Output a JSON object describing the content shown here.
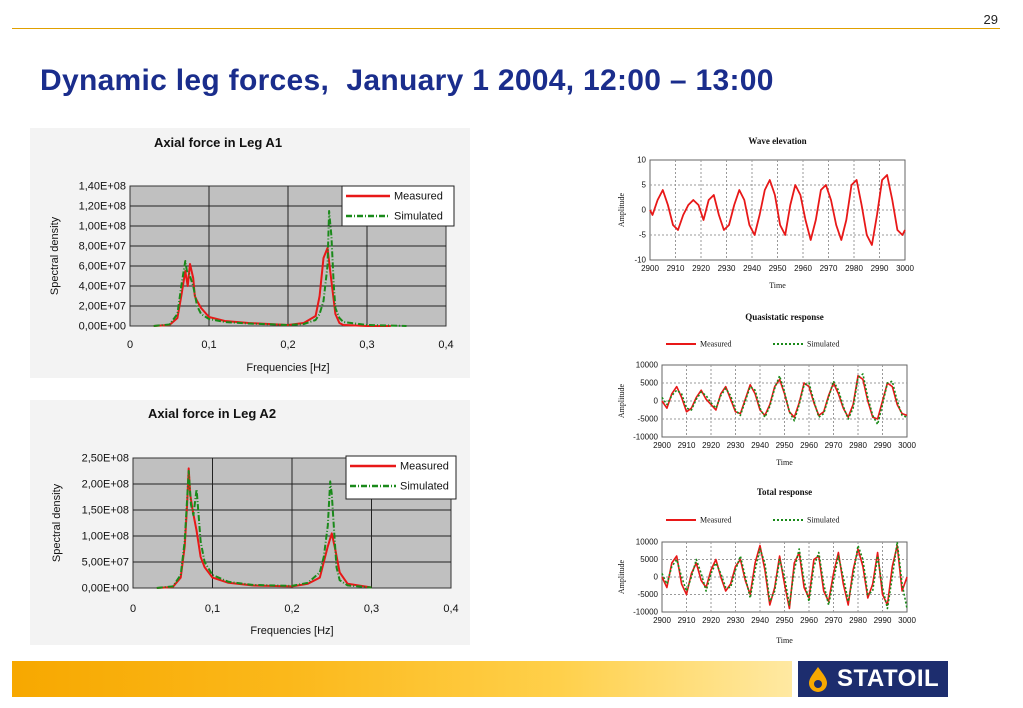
{
  "page": {
    "number": "29",
    "title": "Dynamic leg forces,  January 1 2004, 12:00 – 13:00",
    "logo": "STATOIL"
  },
  "colors": {
    "title": "#1a2d8c",
    "measured": "#e81818",
    "simulated": "#1a8a1a",
    "plot_bg": "#c0c0c0",
    "brand_orange": "#f7a800",
    "brand_navy": "#1d2d6e"
  },
  "chart_data": [
    {
      "id": "axial-a1",
      "type": "line",
      "title": "Axial force in Leg A1",
      "xlabel": "Frequencies [Hz]",
      "ylabel": "Spectral density",
      "xlim": [
        0,
        0.4
      ],
      "ylim": [
        0,
        140000000
      ],
      "xticks": [
        "0",
        "0,1",
        "0,2",
        "0,3",
        "0,4"
      ],
      "yticks": [
        "0,00E+00",
        "2,00E+07",
        "4,00E+07",
        "6,00E+07",
        "8,00E+07",
        "1,00E+08",
        "1,20E+08",
        "1,40E+08"
      ],
      "grid": true,
      "legend_position": "top-right",
      "series": [
        {
          "name": "Measured",
          "style": "solid",
          "x": [
            0.03,
            0.05,
            0.06,
            0.065,
            0.07,
            0.073,
            0.076,
            0.08,
            0.082,
            0.085,
            0.09,
            0.1,
            0.12,
            0.15,
            0.2,
            0.22,
            0.235,
            0.24,
            0.245,
            0.25,
            0.255,
            0.26,
            0.265,
            0.27,
            0.3,
            0.33
          ],
          "values": [
            0,
            1000000,
            8000000,
            30000000,
            55000000,
            40000000,
            62000000,
            48000000,
            30000000,
            25000000,
            18000000,
            9000000,
            5000000,
            3000000,
            1000000,
            3000000,
            10000000,
            30000000,
            68000000,
            78000000,
            45000000,
            12000000,
            3000000,
            1000000,
            0,
            0
          ]
        },
        {
          "name": "Simulated",
          "style": "dash-dot",
          "x": [
            0.03,
            0.05,
            0.06,
            0.065,
            0.07,
            0.072,
            0.075,
            0.08,
            0.085,
            0.09,
            0.1,
            0.12,
            0.15,
            0.2,
            0.22,
            0.235,
            0.24,
            0.245,
            0.25,
            0.252,
            0.255,
            0.258,
            0.26,
            0.265,
            0.27,
            0.3,
            0.35
          ],
          "values": [
            0,
            1500000,
            12000000,
            40000000,
            65000000,
            55000000,
            52000000,
            40000000,
            20000000,
            12000000,
            7000000,
            4000000,
            2500000,
            1000000,
            2000000,
            6000000,
            12000000,
            25000000,
            60000000,
            115000000,
            90000000,
            40000000,
            18000000,
            8000000,
            4000000,
            1000000,
            0
          ]
        }
      ]
    },
    {
      "id": "axial-a2",
      "type": "line",
      "title": "Axial force in Leg A2",
      "xlabel": "Frequencies [Hz]",
      "ylabel": "Spectral density",
      "xlim": [
        0,
        0.4
      ],
      "ylim": [
        0,
        250000000
      ],
      "xticks": [
        "0",
        "0,1",
        "0,2",
        "0,3",
        "0,4"
      ],
      "yticks": [
        "0,00E+00",
        "5,00E+07",
        "1,00E+08",
        "1,50E+08",
        "2,00E+08",
        "2,50E+08"
      ],
      "grid": true,
      "legend_position": "top-right",
      "series": [
        {
          "name": "Measured",
          "style": "solid",
          "x": [
            0.03,
            0.05,
            0.06,
            0.065,
            0.068,
            0.07,
            0.072,
            0.075,
            0.08,
            0.085,
            0.09,
            0.1,
            0.12,
            0.15,
            0.2,
            0.22,
            0.235,
            0.24,
            0.245,
            0.25,
            0.255,
            0.26,
            0.27,
            0.3
          ],
          "values": [
            0,
            2000000,
            20000000,
            80000000,
            160000000,
            230000000,
            180000000,
            150000000,
            110000000,
            60000000,
            40000000,
            20000000,
            10000000,
            5000000,
            3000000,
            8000000,
            20000000,
            50000000,
            80000000,
            105000000,
            70000000,
            30000000,
            8000000,
            1000000
          ]
        },
        {
          "name": "Simulated",
          "style": "dash-dot",
          "x": [
            0.03,
            0.05,
            0.06,
            0.065,
            0.068,
            0.07,
            0.073,
            0.076,
            0.08,
            0.085,
            0.09,
            0.1,
            0.12,
            0.15,
            0.2,
            0.22,
            0.235,
            0.24,
            0.245,
            0.248,
            0.25,
            0.253,
            0.256,
            0.26,
            0.27,
            0.3
          ],
          "values": [
            0,
            3000000,
            25000000,
            90000000,
            170000000,
            225000000,
            160000000,
            140000000,
            190000000,
            90000000,
            50000000,
            25000000,
            12000000,
            6000000,
            4000000,
            10000000,
            30000000,
            60000000,
            120000000,
            205000000,
            180000000,
            110000000,
            40000000,
            15000000,
            5000000,
            1000000
          ]
        }
      ]
    },
    {
      "id": "wave-elevation",
      "type": "line",
      "title": "Wave elevation",
      "xlabel": "Time",
      "ylabel": "Amplitude",
      "xlim": [
        2900,
        3000
      ],
      "ylim": [
        -10,
        10
      ],
      "xticks": [
        "2900",
        "2910",
        "2920",
        "2930",
        "2940",
        "2950",
        "2960",
        "2970",
        "2980",
        "2990",
        "3000"
      ],
      "yticks": [
        "-10",
        "-5",
        "0",
        "5",
        "10"
      ],
      "grid": true,
      "legend_position": "none",
      "series": [
        {
          "name": "",
          "style": "solid",
          "x": [
            2900,
            2901,
            2903,
            2905,
            2907,
            2909,
            2911,
            2913,
            2915,
            2917,
            2919,
            2921,
            2923,
            2925,
            2927,
            2929,
            2931,
            2933,
            2935,
            2937,
            2939,
            2941,
            2943,
            2945,
            2947,
            2949,
            2951,
            2953,
            2955,
            2957,
            2959,
            2961,
            2963,
            2965,
            2967,
            2969,
            2971,
            2973,
            2975,
            2977,
            2979,
            2981,
            2983,
            2985,
            2987,
            2989,
            2991,
            2993,
            2995,
            2997,
            2999,
            3000
          ],
          "values": [
            0,
            -1,
            2,
            4,
            1,
            -3,
            -4,
            -1,
            1,
            2,
            1,
            -2,
            2,
            3,
            -1,
            -4,
            -3,
            1,
            4,
            2,
            -3,
            -5,
            -1,
            4,
            6,
            3,
            -3,
            -5,
            1,
            5,
            3,
            -2,
            -6,
            -2,
            4,
            5,
            2,
            -3,
            -6,
            -2,
            5,
            6,
            1,
            -5,
            -7,
            -1,
            6,
            7,
            2,
            -4,
            -5,
            -4
          ]
        }
      ]
    },
    {
      "id": "quasistatic-response",
      "type": "line",
      "title": "Quasistatic response",
      "xlabel": "Time",
      "ylabel": "Amplitude",
      "xlim": [
        2900,
        3000
      ],
      "ylim": [
        -10000,
        10000
      ],
      "xticks": [
        "2900",
        "2910",
        "2920",
        "2930",
        "2940",
        "2950",
        "2960",
        "2970",
        "2980",
        "2990",
        "3000"
      ],
      "yticks": [
        "-10000",
        "-5000",
        "0",
        "5000",
        "10000"
      ],
      "grid": true,
      "legend_position": "top",
      "series": [
        {
          "name": "Measured",
          "style": "solid",
          "x": [
            2900,
            2902,
            2904,
            2906,
            2908,
            2910,
            2912,
            2914,
            2916,
            2918,
            2920,
            2922,
            2924,
            2926,
            2928,
            2930,
            2932,
            2934,
            2936,
            2938,
            2940,
            2942,
            2944,
            2946,
            2948,
            2950,
            2952,
            2954,
            2956,
            2958,
            2960,
            2962,
            2964,
            2966,
            2968,
            2970,
            2972,
            2974,
            2976,
            2978,
            2980,
            2982,
            2984,
            2986,
            2988,
            2990,
            2992,
            2994,
            2996,
            2998,
            3000
          ],
          "values": [
            0,
            -2000,
            2000,
            4000,
            1000,
            -3000,
            -2000,
            1000,
            3000,
            500,
            -1000,
            -2500,
            2000,
            4000,
            500,
            -3000,
            -3500,
            500,
            4500,
            2000,
            -2500,
            -4000,
            -1000,
            4000,
            6000,
            2000,
            -3000,
            -4500,
            -500,
            5000,
            4000,
            -500,
            -4000,
            -3000,
            1500,
            5000,
            2000,
            -2000,
            -4500,
            -1000,
            7000,
            6000,
            0,
            -4500,
            -5000,
            0,
            5000,
            4000,
            -1000,
            -3500,
            -4000
          ]
        },
        {
          "name": "Simulated",
          "style": "dotted",
          "x": [
            2900,
            2902,
            2904,
            2906,
            2908,
            2910,
            2912,
            2914,
            2916,
            2918,
            2920,
            2922,
            2924,
            2926,
            2928,
            2930,
            2932,
            2934,
            2936,
            2938,
            2940,
            2942,
            2944,
            2946,
            2948,
            2950,
            2952,
            2954,
            2956,
            2958,
            2960,
            2962,
            2964,
            2966,
            2968,
            2970,
            2972,
            2974,
            2976,
            2978,
            2980,
            2982,
            2984,
            2986,
            2988,
            2990,
            2992,
            2994,
            2996,
            2998,
            3000
          ],
          "values": [
            1000,
            -1000,
            1500,
            3000,
            2000,
            -2000,
            -2500,
            500,
            2500,
            1500,
            -500,
            -2000,
            1500,
            3500,
            1500,
            -2500,
            -4000,
            0,
            4000,
            3000,
            -2000,
            -4500,
            -1500,
            3500,
            7000,
            2500,
            -3000,
            -5500,
            -1000,
            4500,
            5000,
            0,
            -4500,
            -3500,
            1000,
            5500,
            3000,
            -1500,
            -5000,
            -2000,
            6500,
            7500,
            1000,
            -4000,
            -6500,
            -1000,
            5000,
            5500,
            0,
            -4000,
            -4500
          ]
        }
      ]
    },
    {
      "id": "total-response",
      "type": "line",
      "title": "Total response",
      "xlabel": "Time",
      "ylabel": "Amplitude",
      "xlim": [
        2900,
        3000
      ],
      "ylim": [
        -10000,
        10000
      ],
      "xticks": [
        "2900",
        "2910",
        "2920",
        "2930",
        "2940",
        "2950",
        "2960",
        "2970",
        "2980",
        "2990",
        "3000"
      ],
      "yticks": [
        "-10000",
        "-5000",
        "0",
        "5000",
        "10000"
      ],
      "grid": true,
      "legend_position": "top",
      "series": [
        {
          "name": "Measured",
          "style": "solid",
          "x": [
            2900,
            2902,
            2904,
            2906,
            2908,
            2910,
            2912,
            2914,
            2916,
            2918,
            2920,
            2922,
            2924,
            2926,
            2928,
            2930,
            2932,
            2934,
            2936,
            2938,
            2940,
            2942,
            2944,
            2946,
            2948,
            2950,
            2952,
            2954,
            2956,
            2958,
            2960,
            2962,
            2964,
            2966,
            2968,
            2970,
            2972,
            2974,
            2976,
            2978,
            2980,
            2982,
            2984,
            2986,
            2988,
            2990,
            2992,
            2994,
            2996,
            2998,
            3000
          ],
          "values": [
            0,
            -3000,
            4000,
            6000,
            -2000,
            -5000,
            1000,
            4000,
            -1000,
            -3000,
            2000,
            5000,
            0,
            -4000,
            -2000,
            3000,
            5000,
            -1000,
            -5000,
            4000,
            9000,
            2000,
            -8000,
            -3000,
            6000,
            -2000,
            -9000,
            4000,
            7000,
            -3000,
            -6000,
            5000,
            6000,
            -4000,
            -7000,
            1000,
            7000,
            -2000,
            -8000,
            2000,
            8000,
            3000,
            -6000,
            -2000,
            7000,
            -5000,
            -8000,
            3000,
            9000,
            -4000,
            0
          ]
        },
        {
          "name": "Simulated",
          "style": "dotted",
          "x": [
            2900,
            2902,
            2904,
            2906,
            2908,
            2910,
            2912,
            2914,
            2916,
            2918,
            2920,
            2922,
            2924,
            2926,
            2928,
            2930,
            2932,
            2934,
            2936,
            2938,
            2940,
            2942,
            2944,
            2946,
            2948,
            2950,
            2952,
            2954,
            2956,
            2958,
            2960,
            2962,
            2964,
            2966,
            2968,
            2970,
            2972,
            2974,
            2976,
            2978,
            2980,
            2982,
            2984,
            2986,
            2988,
            2990,
            2992,
            2994,
            2996,
            2998,
            3000
          ],
          "values": [
            1000,
            -2000,
            3000,
            5000,
            0,
            -4000,
            0,
            5000,
            1000,
            -4000,
            1000,
            4000,
            1000,
            -3000,
            -3000,
            2000,
            6000,
            0,
            -6000,
            2000,
            8000,
            4000,
            -7000,
            -4000,
            5000,
            0,
            -8000,
            2000,
            8000,
            -1000,
            -7000,
            3000,
            7000,
            -2000,
            -8000,
            -1000,
            6000,
            0,
            -7000,
            0,
            9000,
            5000,
            -5000,
            -4000,
            6000,
            -3000,
            -9000,
            0,
            10000,
            -2000,
            -9000
          ]
        }
      ]
    }
  ]
}
